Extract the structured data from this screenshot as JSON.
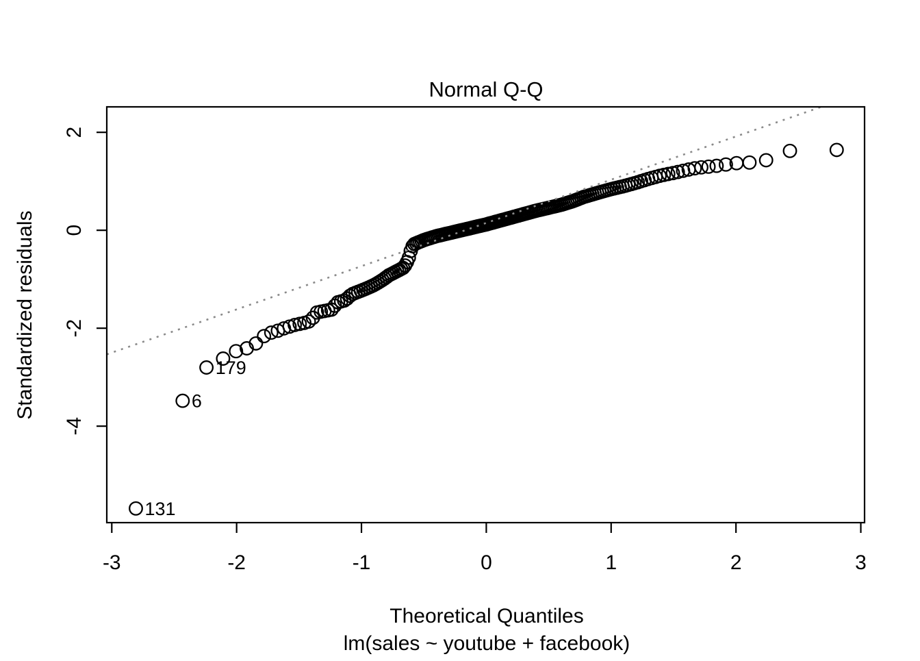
{
  "figure": {
    "background": "#ffffff"
  },
  "colors": {
    "point_stroke": "#000000",
    "axis": "#000000",
    "text": "#000000",
    "reference_line": "#8a8a8a",
    "background": "#ffffff"
  },
  "chart_data": {
    "type": "scatter",
    "title": "Normal Q-Q",
    "xlabel": "Theoretical Quantiles",
    "xlabel_sub": "lm(sales ~ youtube + facebook)",
    "ylabel": "Standardized residuals",
    "x_ticks": [
      -3,
      -2,
      -1,
      0,
      1,
      2,
      3
    ],
    "y_ticks": [
      2,
      0,
      -2,
      -4
    ],
    "xlim": [
      -3.04,
      3.03
    ],
    "ylim": [
      -5.97,
      2.52
    ],
    "grid": false,
    "legend": false,
    "marker": "open-circle",
    "n_points": 200,
    "reference_line": {
      "type": "qqline",
      "style": "dotted",
      "color": "#8a8a8a",
      "slope": 0.883,
      "intercept": 0.15
    },
    "curve_landmarks": [
      [
        -2.807,
        -5.68
      ],
      [
        -2.432,
        -3.48
      ],
      [
        -2.241,
        -2.8
      ],
      [
        -2.108,
        -2.62
      ],
      [
        -2.005,
        -2.47
      ],
      [
        -1.919,
        -2.41
      ],
      [
        -1.845,
        -2.31
      ],
      [
        -1.78,
        -2.16
      ],
      [
        -1.722,
        -2.09
      ],
      [
        -1.668,
        -2.05
      ],
      [
        -1.617,
        -2.0
      ],
      [
        -1.53,
        -1.93
      ],
      [
        -1.454,
        -1.89
      ],
      [
        -1.405,
        -1.85
      ],
      [
        -1.36,
        -1.68
      ],
      [
        -1.3,
        -1.65
      ],
      [
        -1.24,
        -1.62
      ],
      [
        -1.19,
        -1.47
      ],
      [
        -1.13,
        -1.43
      ],
      [
        -1.08,
        -1.31
      ],
      [
        -1.02,
        -1.25
      ],
      [
        -0.96,
        -1.19
      ],
      [
        -0.9,
        -1.12
      ],
      [
        -0.84,
        -1.03
      ],
      [
        -0.78,
        -0.92
      ],
      [
        -0.72,
        -0.84
      ],
      [
        -0.66,
        -0.76
      ],
      [
        -0.625,
        -0.6
      ],
      [
        -0.605,
        -0.42
      ],
      [
        -0.585,
        -0.29
      ],
      [
        -0.5,
        -0.2
      ],
      [
        -0.4,
        -0.12
      ],
      [
        -0.3,
        -0.06
      ],
      [
        -0.2,
        0.0
      ],
      [
        -0.1,
        0.06
      ],
      [
        0.0,
        0.12
      ],
      [
        0.1,
        0.19
      ],
      [
        0.2,
        0.26
      ],
      [
        0.3,
        0.33
      ],
      [
        0.4,
        0.4
      ],
      [
        0.5,
        0.46
      ],
      [
        0.6,
        0.52
      ],
      [
        0.7,
        0.6
      ],
      [
        0.78,
        0.68
      ],
      [
        0.9,
        0.77
      ],
      [
        1.0,
        0.84
      ],
      [
        1.1,
        0.9
      ],
      [
        1.2,
        0.97
      ],
      [
        1.3,
        1.05
      ],
      [
        1.4,
        1.12
      ],
      [
        1.5,
        1.17
      ],
      [
        1.6,
        1.23
      ],
      [
        1.7,
        1.28
      ],
      [
        1.83,
        1.31
      ],
      [
        1.91,
        1.34
      ],
      [
        2.0,
        1.37
      ],
      [
        2.1,
        1.38
      ],
      [
        2.241,
        1.43
      ],
      [
        2.432,
        1.62
      ],
      [
        2.807,
        1.64
      ]
    ],
    "labeled_points": [
      {
        "label": "131",
        "q": -2.807,
        "y": -5.68
      },
      {
        "label": "6",
        "q": -2.432,
        "y": -3.48
      },
      {
        "label": "179",
        "q": -2.241,
        "y": -2.8
      }
    ]
  }
}
